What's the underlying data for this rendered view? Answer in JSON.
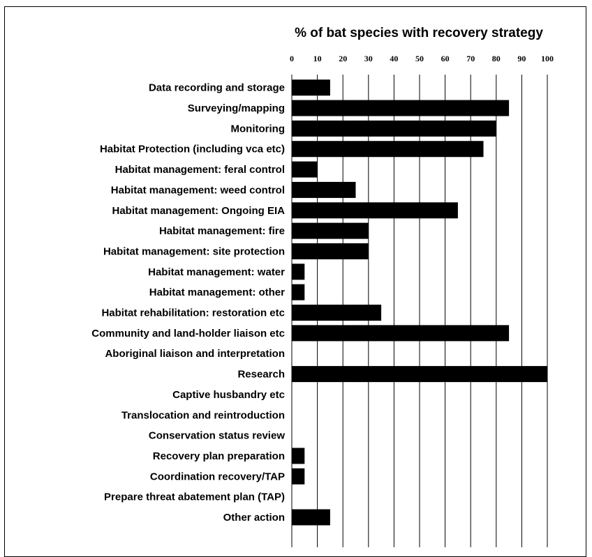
{
  "chart_data": {
    "type": "bar",
    "orientation": "horizontal",
    "title": "% of bat species with recovery strategy",
    "xlabel": "",
    "ylabel": "",
    "xlim": [
      0,
      100
    ],
    "x_ticks": [
      0,
      10,
      20,
      30,
      40,
      50,
      60,
      70,
      80,
      90,
      100
    ],
    "x_axis_position": "top",
    "grid": "vertical",
    "bar_color": "#000000",
    "categories": [
      "Data recording and storage",
      "Surveying/mapping",
      "Monitoring",
      "Habitat Protection (including vca etc)",
      "Habitat management: feral control",
      "Habitat management: weed control",
      "Habitat management: Ongoing EIA",
      "Habitat management: fire",
      "Habitat management: site protection",
      "Habitat management: water",
      "Habitat management: other",
      "Habitat rehabilitation: restoration etc",
      "Community and land-holder liaison etc",
      "Aboriginal liaison and interpretation",
      "Research",
      "Captive husbandry etc",
      "Translocation and reintroduction",
      "Conservation status review",
      "Recovery plan preparation",
      "Coordination recovery/TAP",
      "Prepare threat abatement plan (TAP)",
      "Other action"
    ],
    "values": [
      15,
      85,
      80,
      75,
      10,
      25,
      65,
      30,
      30,
      5,
      5,
      35,
      85,
      0,
      100,
      0,
      0,
      0,
      5,
      5,
      0,
      15
    ]
  }
}
